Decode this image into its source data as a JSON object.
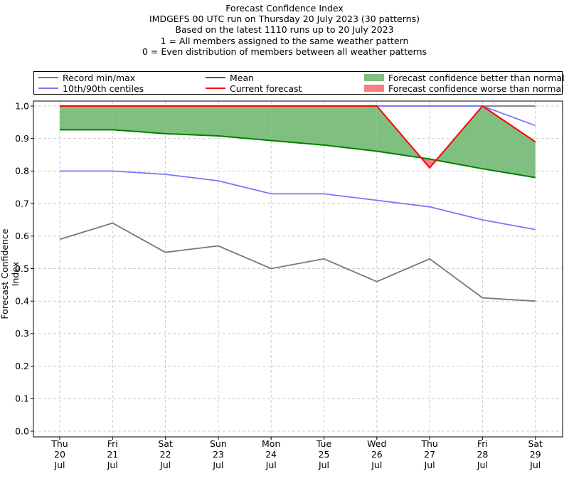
{
  "titles": {
    "line1": "Forecast Confidence Index",
    "line2": "IMDGEFS 00 UTC run on Thursday 20 July 2023 (30 patterns)",
    "line3": "Based on the latest 1110 runs up to 20 July 2023",
    "line4": "1 = All members assigned to the same weather pattern",
    "line5": "0 = Even distribution of members between all weather patterns"
  },
  "legend": {
    "items": [
      {
        "label": "Record min/max",
        "kind": "line",
        "color": "#777777"
      },
      {
        "label": "10th/90th centiles",
        "kind": "line",
        "color": "#7777ff"
      },
      {
        "label": "Mean",
        "kind": "line",
        "color": "#008000"
      },
      {
        "label": "Current forecast",
        "kind": "line",
        "color": "#ff0000"
      },
      {
        "label": "Forecast confidence better than normal",
        "kind": "patch",
        "color": "#7fbf7f"
      },
      {
        "label": "Forecast confidence worse than normal",
        "kind": "patch",
        "color": "#f48080"
      }
    ]
  },
  "chart_data": {
    "type": "line",
    "title": "Forecast Confidence Index",
    "ylabel": "Forecast Confidence Index",
    "xlabel": "",
    "ylim": [
      0,
      1
    ],
    "yticks": [
      "0.0",
      "0.1",
      "0.2",
      "0.3",
      "0.4",
      "0.5",
      "0.6",
      "0.7",
      "0.8",
      "0.9",
      "1.0"
    ],
    "categories": [
      [
        "Thu",
        "20",
        "Jul"
      ],
      [
        "Fri",
        "21",
        "Jul"
      ],
      [
        "Sat",
        "22",
        "Jul"
      ],
      [
        "Sun",
        "23",
        "Jul"
      ],
      [
        "Mon",
        "24",
        "Jul"
      ],
      [
        "Tue",
        "25",
        "Jul"
      ],
      [
        "Wed",
        "26",
        "Jul"
      ],
      [
        "Thu",
        "27",
        "Jul"
      ],
      [
        "Fri",
        "28",
        "Jul"
      ],
      [
        "Sat",
        "29",
        "Jul"
      ]
    ],
    "grid": true,
    "legend_position": "top",
    "series": [
      {
        "name": "Record max",
        "color": "#777777",
        "values": [
          1.0,
          1.0,
          1.0,
          1.0,
          1.0,
          1.0,
          1.0,
          1.0,
          1.0,
          1.0
        ]
      },
      {
        "name": "Record min",
        "color": "#777777",
        "values": [
          0.59,
          0.64,
          0.55,
          0.57,
          0.5,
          0.53,
          0.46,
          0.53,
          0.41,
          0.4
        ]
      },
      {
        "name": "90th centile",
        "color": "#7777ff",
        "values": [
          1.0,
          1.0,
          1.0,
          1.0,
          1.0,
          1.0,
          1.0,
          1.0,
          1.0,
          0.94
        ]
      },
      {
        "name": "10th centile",
        "color": "#7777ff",
        "values": [
          0.8,
          0.8,
          0.79,
          0.77,
          0.73,
          0.73,
          0.71,
          0.69,
          0.65,
          0.62
        ]
      },
      {
        "name": "Mean",
        "color": "#008000",
        "values": [
          0.927,
          0.927,
          0.915,
          0.908,
          0.894,
          0.88,
          0.861,
          0.837,
          0.807,
          0.78
        ]
      },
      {
        "name": "Current forecast",
        "color": "#ff0000",
        "values": [
          1.0,
          1.0,
          1.0,
          1.0,
          1.0,
          1.0,
          1.0,
          0.81,
          1.0,
          0.89
        ]
      }
    ],
    "fill_better_color": "#7fbf7f",
    "fill_worse_color": "#f48080"
  }
}
